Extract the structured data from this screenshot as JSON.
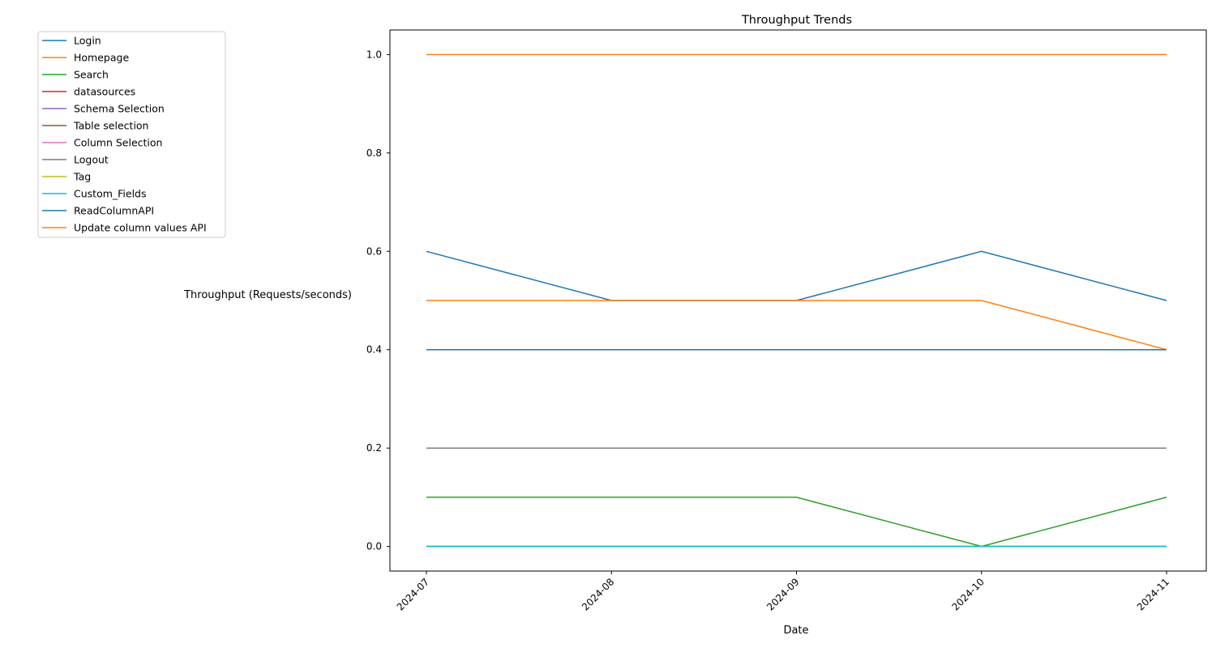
{
  "chart_data": {
    "type": "line",
    "title": "Throughput Trends",
    "xlabel": "Date",
    "ylabel": "Throughput (Requests/seconds)",
    "x": [
      "2024-07",
      "2024-08",
      "2024-09",
      "2024-10",
      "2024-11"
    ],
    "y_ticks": [
      "0.0",
      "0.2",
      "0.4",
      "0.6",
      "0.8",
      "1.0"
    ],
    "ylim": [
      -0.05,
      1.05
    ],
    "grid": false,
    "legend_position": "outside-top-left",
    "series": [
      {
        "name": "Login",
        "color": "#1f77b4",
        "values": [
          0.6,
          0.5,
          0.5,
          0.6,
          0.5
        ]
      },
      {
        "name": "Homepage",
        "color": "#ff7f0e",
        "values": [
          0.5,
          0.5,
          0.5,
          0.5,
          0.4
        ]
      },
      {
        "name": "Search",
        "color": "#2ca02c",
        "values": [
          0.1,
          0.1,
          0.1,
          0.0,
          0.1
        ]
      },
      {
        "name": "datasources",
        "color": "#d62728",
        "values": [
          0.0,
          0.0,
          0.0,
          0.0,
          0.0
        ]
      },
      {
        "name": "Schema Selection",
        "color": "#9467bd",
        "values": [
          0.0,
          0.0,
          0.0,
          0.0,
          0.0
        ]
      },
      {
        "name": "Table selection",
        "color": "#8c564b",
        "values": [
          0.0,
          0.0,
          0.0,
          0.0,
          0.0
        ]
      },
      {
        "name": "Column Selection",
        "color": "#e377c2",
        "values": [
          0.0,
          0.0,
          0.0,
          0.0,
          0.0
        ]
      },
      {
        "name": "Logout",
        "color": "#7f7f7f",
        "values": [
          0.2,
          0.2,
          0.2,
          0.2,
          0.2
        ]
      },
      {
        "name": "Tag",
        "color": "#bcbd22",
        "values": [
          0.0,
          0.0,
          0.0,
          0.0,
          0.0
        ]
      },
      {
        "name": "Custom_Fields",
        "color": "#17becf",
        "values": [
          0.0,
          0.0,
          0.0,
          0.0,
          0.0
        ]
      },
      {
        "name": "ReadColumnAPI",
        "color": "#1f77b4",
        "values": [
          0.4,
          0.4,
          0.4,
          0.4,
          0.4
        ]
      },
      {
        "name": "Update column values API",
        "color": "#ff7f0e",
        "values": [
          1.0,
          1.0,
          1.0,
          1.0,
          1.0
        ]
      }
    ]
  }
}
